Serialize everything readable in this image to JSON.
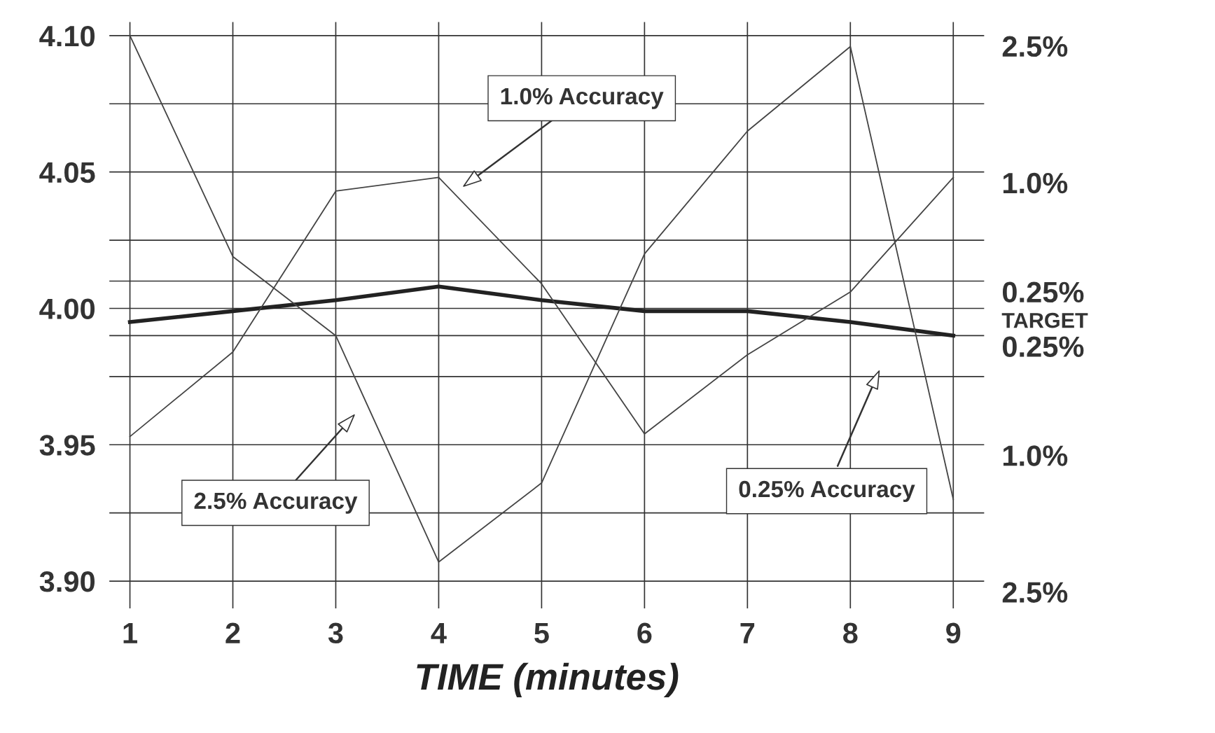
{
  "chart_data": {
    "type": "line",
    "xlabel": "TIME (minutes)",
    "x": [
      1,
      2,
      3,
      4,
      5,
      6,
      7,
      8,
      9
    ],
    "series": [
      {
        "color": "#222222",
        "values": [
          3.995,
          3.999,
          4.003,
          4.008,
          4.003,
          3.999,
          3.999,
          3.995,
          3.99
        ]
      },
      {
        "color": "#444444",
        "values": [
          4.1,
          4.019,
          3.99,
          3.907,
          3.936,
          4.02,
          4.065,
          4.096,
          3.93
        ]
      },
      {
        "color": "#444444",
        "values": [
          3.953,
          3.984,
          4.043,
          4.048,
          4.009,
          3.954,
          3.983,
          4.006,
          4.048
        ]
      }
    ],
    "xlim": [
      0.8,
      9.3
    ],
    "xticks": [
      1,
      2,
      3,
      4,
      5,
      6,
      7,
      8,
      9
    ],
    "ylim": [
      3.89,
      4.105
    ],
    "yticks": [
      {
        "value": 4.1,
        "label": "4.10"
      },
      {
        "value": 4.075,
        "label": null
      },
      4.05,
      {
        "value": 4.025,
        "label": null
      },
      {
        "value": 4.01,
        "label": null
      },
      {
        "value": 4.0,
        "label": "4.00"
      },
      {
        "value": 3.99,
        "label": null
      },
      {
        "value": 3.975,
        "label": null
      },
      3.95,
      {
        "value": 3.925,
        "label": null
      },
      {
        "value": 3.9,
        "label": "3.90"
      }
    ],
    "grid": true,
    "legend": false,
    "marker": "none",
    "line_style": "solid",
    "annotations": [
      "1.0% Accuracy",
      "2.5% Accuracy",
      "0.25% Accuracy",
      "2.5%",
      "1.0%",
      "0.25%",
      "TARGET",
      "0.25%",
      "1.0%",
      "2.5%"
    ]
  }
}
